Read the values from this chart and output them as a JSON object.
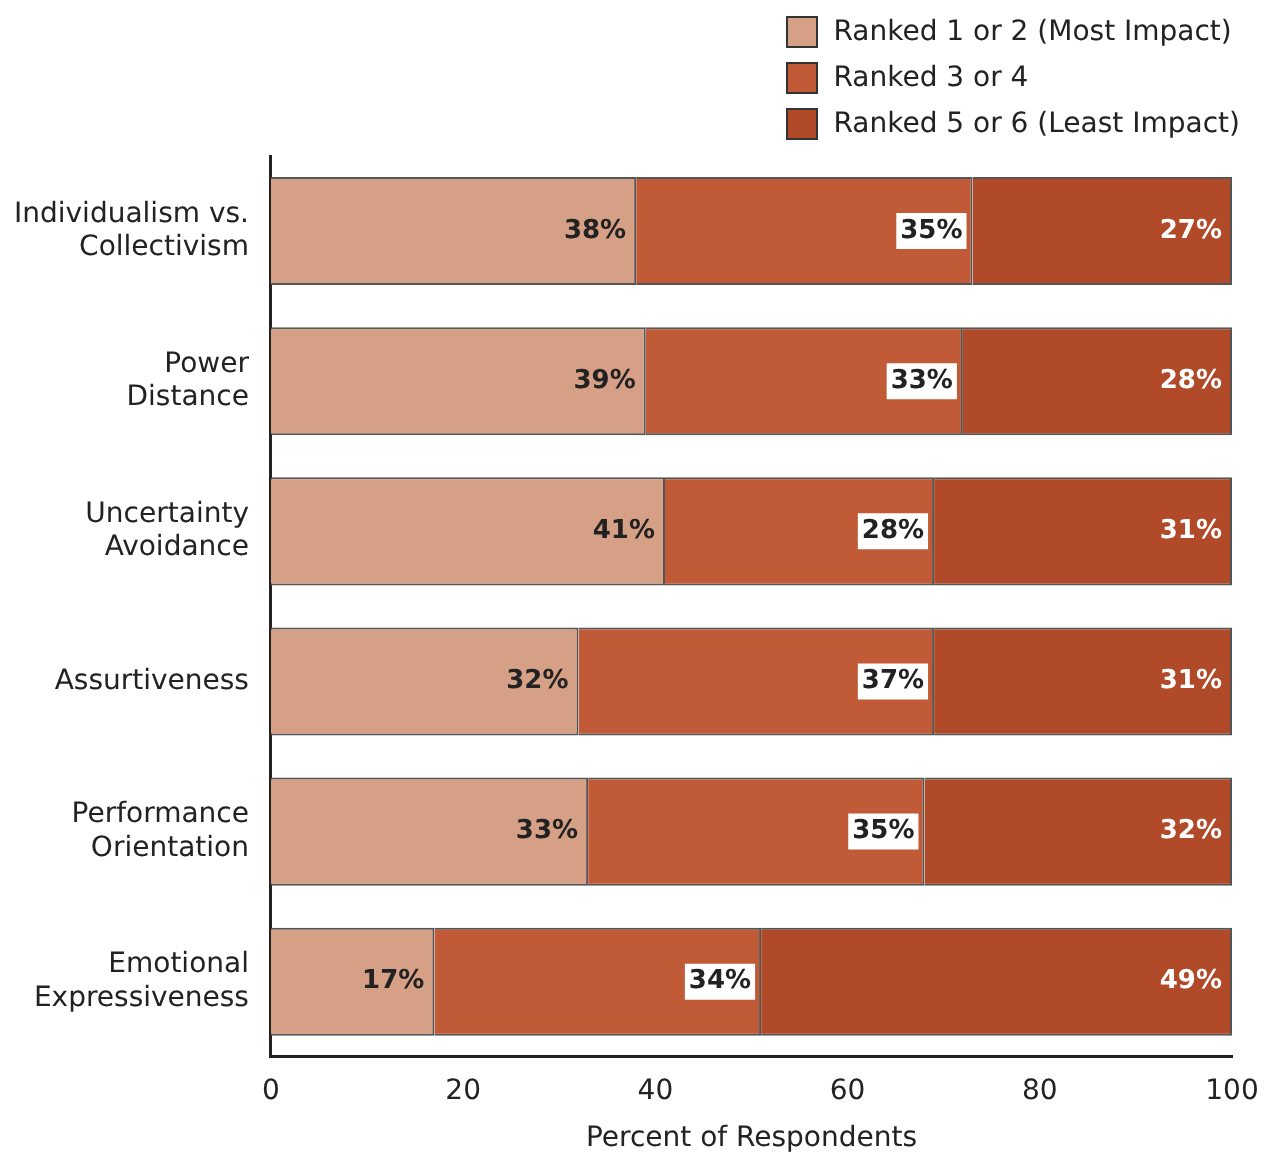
{
  "chart_data": {
    "type": "bar",
    "orientation": "horizontal",
    "stacked": true,
    "categories": [
      "Individualism vs.\nCollectivism",
      "Power\nDistance",
      "Uncertainty\nAvoidance",
      "Assurtiveness",
      "Performance\nOrientation",
      "Emotional\nExpressiveness"
    ],
    "series": [
      {
        "name": "Ranked 1 or 2 (Most Impact)",
        "color": "#d6a086",
        "values": [
          38,
          39,
          41,
          32,
          33,
          17
        ],
        "value_labels": [
          "38%",
          "39%",
          "41%",
          "32%",
          "33%",
          "17%"
        ]
      },
      {
        "name": "Ranked 3 or 4",
        "color": "#c05a37",
        "values": [
          35,
          33,
          28,
          37,
          35,
          34
        ],
        "value_labels": [
          "35%",
          "33%",
          "28%",
          "37%",
          "35%",
          "34%"
        ]
      },
      {
        "name": "Ranked 5 or 6 (Least Impact)",
        "color": "#b04a28",
        "values": [
          27,
          28,
          31,
          31,
          32,
          49
        ],
        "value_labels": [
          "27%",
          "28%",
          "31%",
          "31%",
          "32%",
          "49%"
        ]
      }
    ],
    "xlabel": "Percent of Respondents",
    "xlim": [
      0,
      100
    ],
    "xticks": [
      0,
      20,
      40,
      60,
      80,
      100
    ],
    "legend": "top right",
    "grid": false
  }
}
